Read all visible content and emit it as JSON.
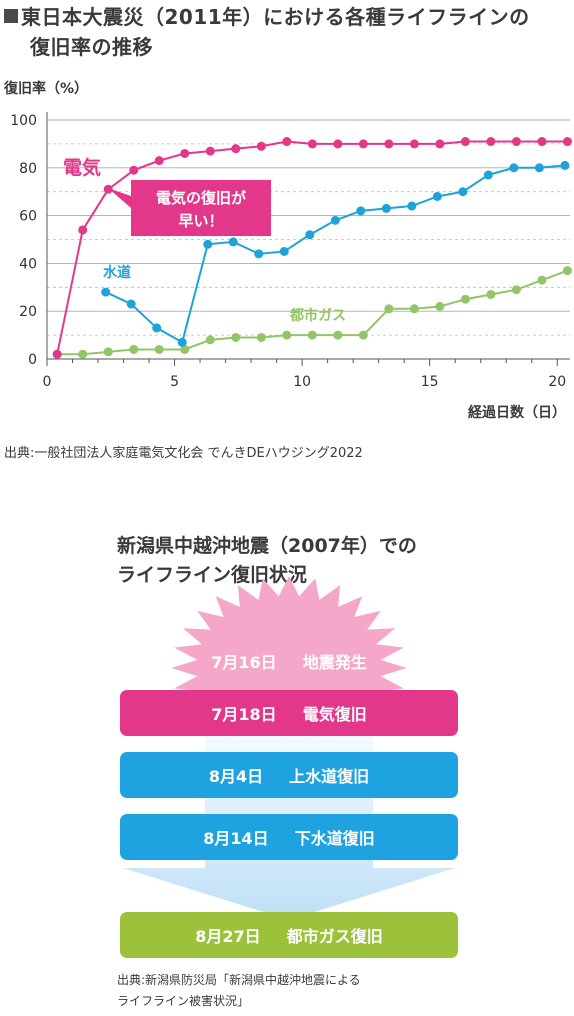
{
  "chart_title": {
    "marker": "■",
    "line1": "東日本大震災（2011年）における各種ライフラインの",
    "line2": "復旧率の推移"
  },
  "chart_data": {
    "type": "line",
    "title": "東日本大震災（2011年）における各種ライフラインの復旧率の推移",
    "ylabel": "復旧率（%）",
    "xlabel": "経過日数（日）",
    "xlim": [
      0,
      20.5
    ],
    "ylim": [
      0,
      100
    ],
    "xticks": [
      0,
      5,
      10,
      15,
      20
    ],
    "yticks": [
      0,
      20,
      40,
      60,
      80,
      100
    ],
    "grid": true,
    "series": [
      {
        "name": "電気",
        "color": "#e3388a",
        "x": [
          0.4,
          1.4,
          2.4,
          3.4,
          4.4,
          5.4,
          6.4,
          7.4,
          8.4,
          9.4,
          10.4,
          11.4,
          12.4,
          13.4,
          14.4,
          15.4,
          16.4,
          17.4,
          18.4,
          19.4,
          20.4
        ],
        "y": [
          2,
          54,
          71,
          79,
          83,
          86,
          87,
          88,
          89,
          91,
          90,
          90,
          90,
          90,
          90,
          90,
          91,
          91,
          91,
          91,
          91
        ]
      },
      {
        "name": "水道",
        "color": "#1ea3d9",
        "x": [
          2.3,
          3.3,
          4.3,
          5.3,
          6.3,
          7.3,
          8.3,
          9.3,
          10.3,
          11.3,
          12.3,
          13.3,
          14.3,
          15.3,
          16.3,
          17.3,
          18.3,
          19.3,
          20.3
        ],
        "y": [
          28,
          23,
          13,
          7,
          48,
          49,
          44,
          45,
          52,
          58,
          62,
          63,
          64,
          68,
          70,
          77,
          80,
          80,
          81
        ]
      },
      {
        "name": "都市ガス",
        "color": "#93c467",
        "x": [
          0.4,
          1.4,
          2.4,
          3.4,
          4.4,
          5.4,
          6.4,
          7.4,
          8.4,
          9.4,
          10.4,
          11.4,
          12.4,
          13.4,
          14.4,
          15.4,
          16.4,
          17.4,
          18.4,
          19.4,
          20.4
        ],
        "y": [
          2,
          2,
          3,
          4,
          4,
          4,
          8,
          9,
          9,
          10,
          10,
          10,
          10,
          21,
          21,
          22,
          25,
          27,
          29,
          33,
          37
        ]
      }
    ],
    "annotations": {
      "denki_label": "電気",
      "suido_label": "水道",
      "gas_label": "都市ガス",
      "callout_line1": "電気の復旧が",
      "callout_line2": "早い！"
    }
  },
  "source1": "出典:一般社団法人家庭電気文化会 でんきDEハウジング2022",
  "timeline": {
    "title_line1": "新潟県中越沖地震（2007年）での",
    "title_line2": "ライフライン復旧状況",
    "items": [
      {
        "date": "7月16日",
        "event": "地震発生",
        "color": "#f090bc"
      },
      {
        "date": "7月18日",
        "event": "電気復旧",
        "color": "#e3388a"
      },
      {
        "date": "8月4日",
        "event": "上水道復旧",
        "color": "#1ea3e0"
      },
      {
        "date": "8月14日",
        "event": "下水道復旧",
        "color": "#1ea3e0"
      },
      {
        "date": "8月27日",
        "event": "都市ガス復旧",
        "color": "#9cc23b"
      }
    ],
    "source_line1": "出典:新潟県防災局「新潟県中越沖地震による",
    "source_line2": "ライフライン被害状況」"
  }
}
